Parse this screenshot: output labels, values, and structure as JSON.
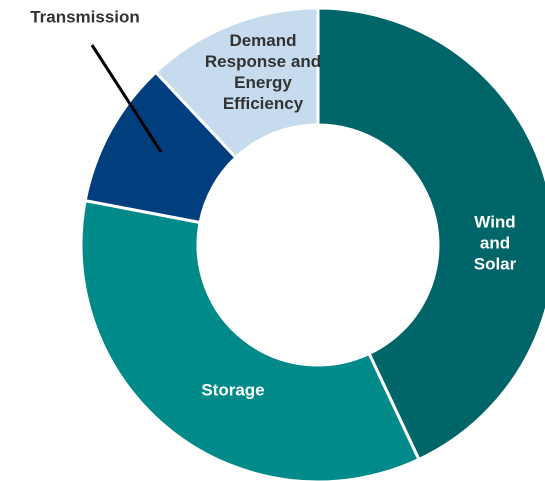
{
  "chart_data": {
    "type": "donut",
    "categories": [
      "Wind and Solar",
      "Storage",
      "Transmission",
      "Demand Response and Energy Efficiency"
    ],
    "values": [
      43,
      35,
      10,
      12
    ],
    "colors": [
      "#006568",
      "#008a8a",
      "#003e7e",
      "#c6dbed"
    ]
  }
}
